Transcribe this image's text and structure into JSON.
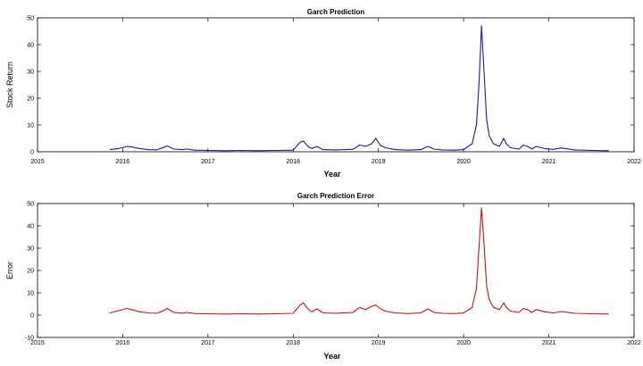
{
  "chart_data": [
    {
      "type": "line",
      "title": "Garch Prediction",
      "xlabel": "Year",
      "ylabel": "Stock Return",
      "xlim": [
        2015,
        2022
      ],
      "ylim": [
        0,
        50
      ],
      "x_ticks": [
        "2015",
        "2016",
        "2017",
        "2018",
        "2019",
        "2020",
        "2021",
        "2022"
      ],
      "y_ticks": [
        "0",
        "10",
        "20",
        "30",
        "40",
        "50"
      ],
      "grid": false,
      "color": "#1a1aa0",
      "series": [
        {
          "x": [
            2015.85,
            2015.95,
            2016.05,
            2016.1,
            2016.2,
            2016.3,
            2016.4,
            2016.48,
            2016.52,
            2016.6,
            2016.7,
            2016.75,
            2016.85,
            2017.0,
            2017.2,
            2017.4,
            2017.6,
            2017.8,
            2018.0,
            2018.08,
            2018.12,
            2018.18,
            2018.22,
            2018.28,
            2018.35,
            2018.5,
            2018.7,
            2018.78,
            2018.85,
            2018.92,
            2018.97,
            2019.02,
            2019.08,
            2019.2,
            2019.35,
            2019.5,
            2019.58,
            2019.65,
            2019.75,
            2019.9,
            2020.0,
            2020.1,
            2020.15,
            2020.18,
            2020.21,
            2020.24,
            2020.27,
            2020.3,
            2020.35,
            2020.42,
            2020.47,
            2020.5,
            2020.55,
            2020.65,
            2020.7,
            2020.75,
            2020.8,
            2020.85,
            2020.95,
            2021.05,
            2021.15,
            2021.3,
            2021.5,
            2021.7
          ],
          "y": [
            0.8,
            1.2,
            2.0,
            1.8,
            1.2,
            0.8,
            0.7,
            1.6,
            2.2,
            1.0,
            0.8,
            1.0,
            0.6,
            0.5,
            0.4,
            0.5,
            0.4,
            0.5,
            0.6,
            3.5,
            4.0,
            1.8,
            1.2,
            2.0,
            0.8,
            0.7,
            0.9,
            2.5,
            2.0,
            3.0,
            5.0,
            2.5,
            1.5,
            0.8,
            0.6,
            0.8,
            2.0,
            1.0,
            0.7,
            0.6,
            0.8,
            3.0,
            10.0,
            25.0,
            47.0,
            30.0,
            12.0,
            6.0,
            3.0,
            2.0,
            5.0,
            3.0,
            1.5,
            1.0,
            2.5,
            2.0,
            1.0,
            2.0,
            1.2,
            0.9,
            1.4,
            0.7,
            0.5,
            0.4
          ]
        }
      ]
    },
    {
      "type": "line",
      "title": "Garch Prediction Error",
      "xlabel": "Year",
      "ylabel": "Error",
      "xlim": [
        2015,
        2022
      ],
      "ylim": [
        -10,
        50
      ],
      "x_ticks": [
        "2015",
        "2016",
        "2017",
        "2018",
        "2019",
        "2020",
        "2021",
        "2022"
      ],
      "y_ticks": [
        "-10",
        "0",
        "10",
        "20",
        "30",
        "40",
        "50"
      ],
      "grid": false,
      "color": "#d01010",
      "series": [
        {
          "x": [
            2015.85,
            2015.95,
            2016.05,
            2016.1,
            2016.2,
            2016.3,
            2016.4,
            2016.48,
            2016.52,
            2016.6,
            2016.7,
            2016.75,
            2016.85,
            2017.0,
            2017.2,
            2017.4,
            2017.6,
            2017.8,
            2018.0,
            2018.08,
            2018.12,
            2018.18,
            2018.22,
            2018.28,
            2018.35,
            2018.5,
            2018.7,
            2018.78,
            2018.85,
            2018.92,
            2018.97,
            2019.02,
            2019.08,
            2019.2,
            2019.35,
            2019.5,
            2019.58,
            2019.65,
            2019.75,
            2019.9,
            2020.0,
            2020.1,
            2020.15,
            2020.18,
            2020.21,
            2020.24,
            2020.27,
            2020.3,
            2020.35,
            2020.42,
            2020.47,
            2020.5,
            2020.55,
            2020.65,
            2020.7,
            2020.75,
            2020.8,
            2020.85,
            2020.95,
            2021.05,
            2021.15,
            2021.3,
            2021.5,
            2021.7
          ],
          "y": [
            1.0,
            2.0,
            3.0,
            2.5,
            1.5,
            1.0,
            0.8,
            2.0,
            3.0,
            1.2,
            0.9,
            1.2,
            0.7,
            0.6,
            0.5,
            0.6,
            0.5,
            0.6,
            0.8,
            4.5,
            5.5,
            2.5,
            1.5,
            2.8,
            1.0,
            0.8,
            1.2,
            3.5,
            2.5,
            4.0,
            4.5,
            3.0,
            1.8,
            1.0,
            0.7,
            1.0,
            2.8,
            1.2,
            0.8,
            0.7,
            1.0,
            3.5,
            12.0,
            30.0,
            48.0,
            32.0,
            13.0,
            7.0,
            3.5,
            2.5,
            5.5,
            3.5,
            1.8,
            1.2,
            3.0,
            2.5,
            1.2,
            2.5,
            1.5,
            1.0,
            1.6,
            0.8,
            0.6,
            0.5
          ]
        }
      ]
    }
  ]
}
